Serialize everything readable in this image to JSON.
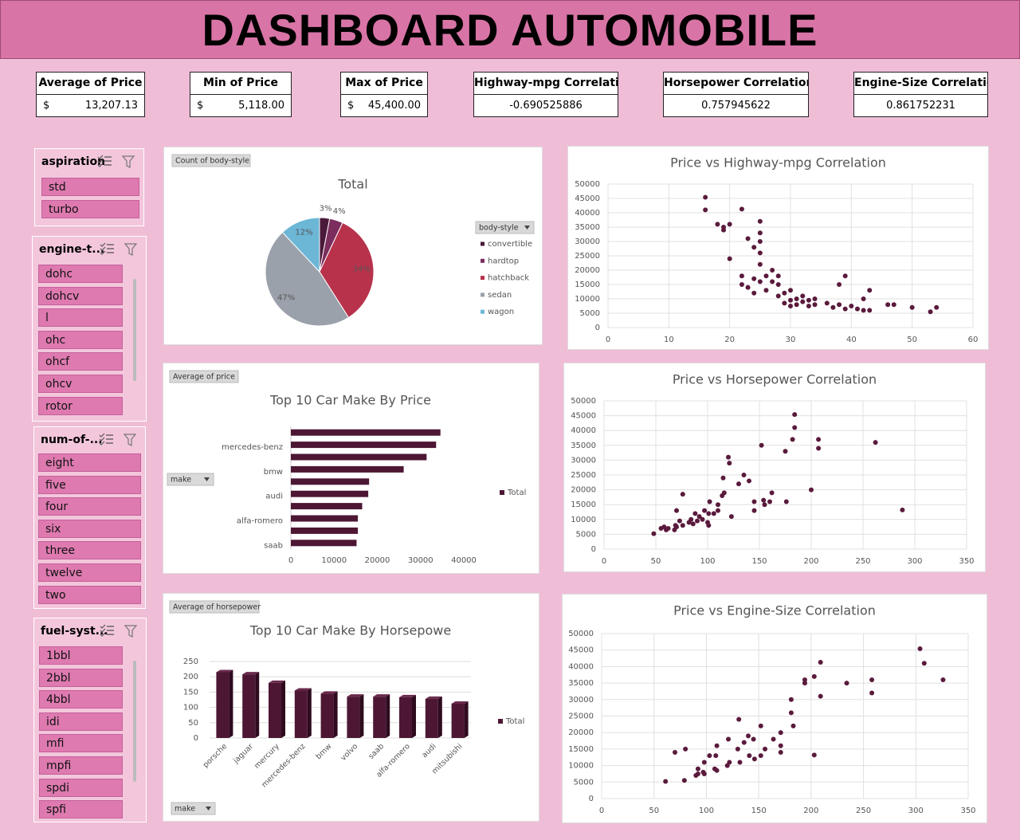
{
  "header": {
    "title": "DASHBOARD AUTOMOBILE"
  },
  "kpis": [
    {
      "label": "Average of Price",
      "currency": "$",
      "value": "13,207.13"
    },
    {
      "label": "Min of Price",
      "currency": "$",
      "value": "5,118.00"
    },
    {
      "label": "Max of Price",
      "currency": "$",
      "value": "45,400.00"
    },
    {
      "label": "Highway-mpg Correlation",
      "value": "-0.690525886"
    },
    {
      "label": "Horsepower Correlation",
      "value": "0.757945622"
    },
    {
      "label": "Engine-Size Correlation",
      "value": "0.861752231"
    }
  ],
  "slicers": [
    {
      "title": "aspiration",
      "items": [
        "std",
        "turbo"
      ]
    },
    {
      "title": "engine-t...",
      "items": [
        "dohc",
        "dohcv",
        "l",
        "ohc",
        "ohcf",
        "ohcv",
        "rotor"
      ]
    },
    {
      "title": "num-of-...",
      "items": [
        "eight",
        "five",
        "four",
        "six",
        "three",
        "twelve",
        "two"
      ]
    },
    {
      "title": "fuel-syst...",
      "items": [
        "1bbl",
        "2bbl",
        "4bbl",
        "idi",
        "mfi",
        "mpfi",
        "spdi",
        "spfi"
      ]
    }
  ],
  "chart_data": [
    {
      "type": "pie",
      "title": "Total",
      "value_field": "Count of body-style",
      "legend_title": "body-style",
      "categories": [
        "convertible",
        "hardtop",
        "hatchback",
        "sedan",
        "wagon"
      ],
      "values": [
        3,
        4,
        34,
        47,
        12
      ],
      "value_labels": [
        "3%",
        "4%",
        "34%",
        "47%",
        "12%"
      ],
      "colors": [
        "#4a1a3a",
        "#7b2d5e",
        "#b8324c",
        "#9ba1ab",
        "#6cb6d6"
      ]
    },
    {
      "type": "bar",
      "horizontal": true,
      "title": "Top 10 Car Make By Price",
      "value_field": "Average of price",
      "axis_field": "make",
      "categories": [
        null,
        "mercedes-benz",
        null,
        "bmw",
        null,
        "audi",
        null,
        "alfa-romero",
        null,
        "saab"
      ],
      "series": [
        {
          "name": "Total",
          "color": "#4d1734",
          "values": [
            34600,
            33600,
            31400,
            26100,
            18100,
            17900,
            16500,
            15500,
            15500,
            15200
          ]
        }
      ],
      "xlim": [
        0,
        40000
      ],
      "xticks": [
        0,
        10000,
        20000,
        30000,
        40000
      ],
      "grid": false
    },
    {
      "type": "bar",
      "horizontal": false,
      "title": "Top 10 Car Make By Horsepowe",
      "value_field": "Average of horsepower",
      "axis_field": "make",
      "categories": [
        "porsche",
        "jaguar",
        "mercury",
        "mercedes-benz",
        "bmw",
        "volvo",
        "saab",
        "alfa-romero",
        "audi",
        "mitsubishi"
      ],
      "series": [
        {
          "name": "Total",
          "color": "#4d1734",
          "values": [
            215,
            208,
            180,
            155,
            145,
            135,
            135,
            133,
            128,
            112
          ]
        }
      ],
      "ylim": [
        0,
        250
      ],
      "yticks": [
        0,
        50,
        100,
        150,
        200,
        250
      ],
      "grid": true
    },
    {
      "type": "scatter",
      "title": "Price vs Highway-mpg Correlation",
      "color": "#5a1a3c",
      "grid": true,
      "xlim": [
        0,
        60
      ],
      "xticks": [
        0,
        10,
        20,
        30,
        40,
        50,
        60
      ],
      "ylim": [
        0,
        50000
      ],
      "yticks": [
        0,
        5000,
        10000,
        15000,
        20000,
        25000,
        30000,
        35000,
        40000,
        45000,
        50000
      ],
      "x": [
        16,
        16,
        18,
        19,
        19,
        20,
        20,
        22,
        23,
        24,
        25,
        25,
        25,
        25,
        25,
        22,
        22,
        23,
        24,
        24,
        25,
        26,
        26,
        27,
        27,
        28,
        28,
        28,
        29,
        29,
        30,
        30,
        30,
        31,
        31,
        32,
        32,
        33,
        33,
        34,
        36,
        37,
        38,
        39,
        39,
        40,
        41,
        42,
        42,
        43,
        43,
        46,
        47,
        50,
        53,
        54,
        38,
        34
      ],
      "values": [
        45400,
        41000,
        36000,
        35000,
        34000,
        36000,
        24000,
        41300,
        31000,
        28000,
        37000,
        33000,
        30000,
        26000,
        22000,
        18000,
        15000,
        14000,
        17000,
        12000,
        16000,
        18000,
        13000,
        16000,
        20000,
        18000,
        15000,
        11000,
        12000,
        8500,
        9500,
        13000,
        7500,
        10000,
        8000,
        9000,
        11000,
        7500,
        9500,
        8000,
        8500,
        7000,
        8000,
        6500,
        18000,
        7500,
        6500,
        6000,
        10000,
        13000,
        6000,
        8000,
        8000,
        7000,
        5500,
        7000,
        15000,
        10000
      ]
    },
    {
      "type": "scatter",
      "title": "Price vs Horsepower Correlation",
      "color": "#5a1a3c",
      "grid": true,
      "xlim": [
        0,
        350
      ],
      "xticks": [
        0,
        50,
        100,
        150,
        200,
        250,
        300,
        350
      ],
      "ylim": [
        0,
        50000
      ],
      "yticks": [
        0,
        5000,
        10000,
        15000,
        20000,
        25000,
        30000,
        35000,
        40000,
        45000,
        50000
      ],
      "x": [
        48,
        55,
        58,
        60,
        62,
        68,
        69,
        70,
        70,
        73,
        76,
        76,
        82,
        84,
        86,
        88,
        90,
        92,
        95,
        97,
        100,
        101,
        102,
        110,
        110,
        114,
        115,
        116,
        120,
        121,
        123,
        130,
        135,
        140,
        145,
        152,
        155,
        160,
        162,
        175,
        176,
        182,
        184,
        184,
        200,
        207,
        207,
        262,
        288,
        145,
        154,
        106,
        101
      ],
      "values": [
        5200,
        7000,
        7500,
        6500,
        7000,
        6500,
        8000,
        7500,
        13000,
        9500,
        8000,
        18500,
        9000,
        10000,
        8500,
        12000,
        9500,
        11000,
        10000,
        13000,
        9000,
        12000,
        16000,
        15000,
        13000,
        18000,
        24000,
        19000,
        31000,
        29000,
        11000,
        22000,
        25000,
        23000,
        16000,
        35000,
        15000,
        16000,
        19000,
        33000,
        16000,
        37000,
        45400,
        41000,
        20000,
        37000,
        34000,
        36000,
        13200,
        13000,
        16500,
        12000,
        8000
      ]
    },
    {
      "type": "scatter",
      "title": "Price vs Engine-Size Correlation",
      "color": "#5a1a3c",
      "grid": true,
      "xlim": [
        0,
        350
      ],
      "xticks": [
        0,
        50,
        100,
        150,
        200,
        250,
        300,
        350
      ],
      "ylim": [
        0,
        50000
      ],
      "yticks": [
        0,
        5000,
        10000,
        15000,
        20000,
        25000,
        30000,
        35000,
        40000,
        45000,
        50000
      ],
      "x": [
        61,
        70,
        79,
        90,
        92,
        92,
        97,
        98,
        98,
        103,
        108,
        109,
        110,
        110,
        120,
        121,
        122,
        130,
        131,
        136,
        140,
        141,
        146,
        152,
        156,
        164,
        171,
        171,
        181,
        181,
        183,
        194,
        203,
        209,
        209,
        234,
        258,
        258,
        304,
        308,
        326,
        80,
        152,
        171,
        194,
        203,
        132,
        145
      ],
      "values": [
        5200,
        14000,
        5500,
        7000,
        7500,
        9000,
        8000,
        7500,
        11000,
        13000,
        9000,
        13000,
        8500,
        16000,
        10000,
        18000,
        11000,
        15000,
        24000,
        17000,
        19000,
        13000,
        12000,
        22000,
        15000,
        18000,
        16000,
        14000,
        30000,
        26000,
        22000,
        35000,
        37000,
        31000,
        41300,
        35000,
        32000,
        36000,
        45400,
        41000,
        36000,
        15000,
        13000,
        20000,
        36000,
        13200,
        11000,
        18000
      ]
    }
  ]
}
